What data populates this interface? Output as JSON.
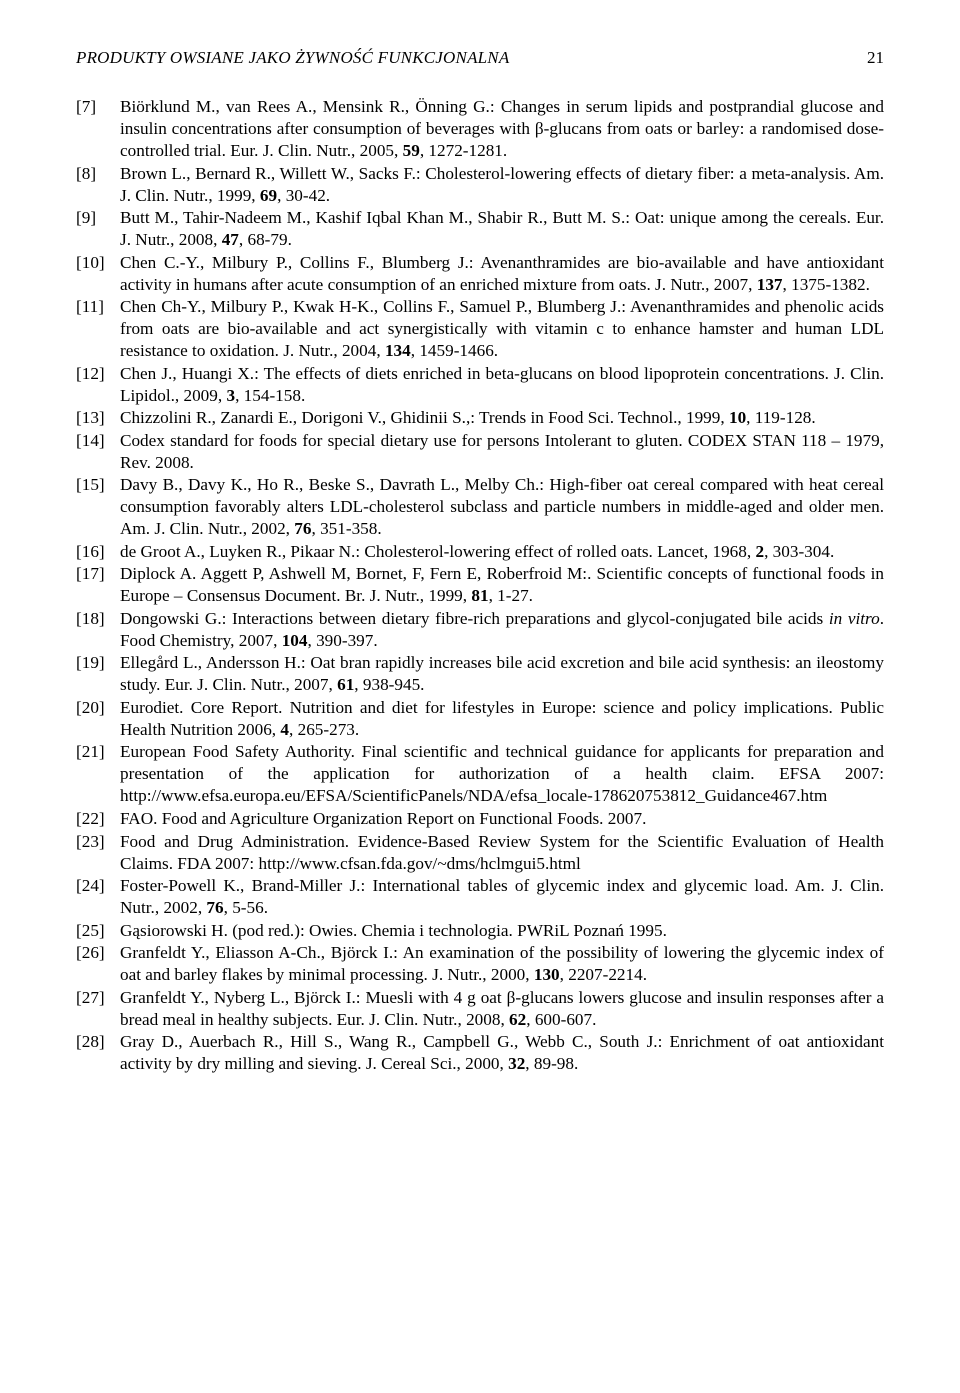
{
  "header": {
    "running_head": "PRODUKTY OWSIANE JAKO ŻYWNOŚĆ FUNKCJONALNA",
    "page_number": "21"
  },
  "references": [
    {
      "label": "[7]",
      "text": "Biörklund M., van Rees A., Mensink R., Önning G.: Changes in serum lipids and postprandial glucose and insulin concentrations after consumption of beverages with β-glucans from oats or barley: a randomised dose-controlled trial. Eur. J. Clin. Nutr., 2005, <b>59</b>, 1272-1281."
    },
    {
      "label": "[8]",
      "text": "Brown L., Bernard R., Willett W., Sacks F.: Cholesterol-lowering effects of dietary fiber: a meta-analysis. Am. J. Clin. Nutr., 1999, <b>69</b>, 30-42."
    },
    {
      "label": "[9]",
      "text": "Butt M., Tahir-Nadeem M., Kashif Iqbal Khan M., Shabir R., Butt M. S.: Oat: unique among the cereals. Eur. J. Nutr., 2008, <b>47</b>, 68-79."
    },
    {
      "label": "[10]",
      "text": "Chen C.-Y., Milbury P., Collins F., Blumberg J.: Avenanthramides are bio-available and have antioxidant activity in humans after acute consumption of an enriched mixture from oats. J. Nutr., 2007, <b>137</b>, 1375-1382."
    },
    {
      "label": "[11]",
      "text": "Chen Ch-Y., Milbury P., Kwak H-K., Collins F., Samuel P., Blumberg J.: Avenanthramides and phenolic acids from oats are bio-available and act synergistically with vitamin c to enhance hamster and human LDL resistance to oxidation. J. Nutr., 2004, <b>134</b>, 1459-1466."
    },
    {
      "label": "[12]",
      "text": "Chen J., Huangi X.: The effects of diets enriched in beta-glucans on blood lipoprotein concentrations. J. Clin. Lipidol., 2009, <b>3</b>, 154-158."
    },
    {
      "label": "[13]",
      "text": "Chizzolini R., Zanardi E., Dorigoni V., Ghidinii S.,: Trends in Food Sci. Technol., 1999, <b>10</b>, 119-128."
    },
    {
      "label": "[14]",
      "text": "Codex standard for foods for special dietary use for persons Intolerant to gluten. CODEX STAN 118 – 1979, Rev. 2008."
    },
    {
      "label": "[15]",
      "text": "Davy B., Davy K., Ho R., Beske S., Davrath L., Melby Ch.: High-fiber oat cereal compared with heat cereal consumption favorably alters LDL-cholesterol subclass and particle numbers in middle-aged and older men. Am. J. Clin. Nutr., 2002, <b>76</b>, 351-358."
    },
    {
      "label": "[16]",
      "text": "de Groot A., Luyken R., Pikaar N.: Cholesterol-lowering effect of rolled oats. Lancet, 1968, <b>2</b>, 303-304."
    },
    {
      "label": "[17]",
      "text": "Diplock A. Aggett P, Ashwell M, Bornet, F, Fern E, Roberfroid M:. Scientific concepts of functional foods in Europe – Consensus Document. Br. J. Nutr., 1999, <b>81</b>, 1-27."
    },
    {
      "label": "[18]",
      "text": "Dongowski G.: Interactions between dietary fibre-rich preparations and glycol-conjugated bile acids <i>in vitro</i>. Food Chemistry, 2007, <b>104</b>, 390-397."
    },
    {
      "label": "[19]",
      "text": "Ellegård L., Andersson H.: Oat bran rapidly increases bile acid excretion and bile acid synthesis: an ileostomy study. Eur. J. Clin. Nutr., 2007, <b>61</b>, 938-945."
    },
    {
      "label": "[20]",
      "text": "Eurodiet. Core Report. Nutrition and diet for lifestyles in Europe: science and policy implications. Public Health Nutrition 2006, <b>4</b>, 265-273."
    },
    {
      "label": "[21]",
      "text": "European Food Safety Authority. Final scientific and technical guidance for applicants for preparation and presentation of the application for authorization of a health claim. EFSA 2007: http://www.efsa.europa.eu/EFSA/ScientificPanels/NDA/efsa_locale-178620753812_Guidance467.htm"
    },
    {
      "label": "[22]",
      "text": "FAO. Food and Agriculture Organization Report on Functional Foods. 2007."
    },
    {
      "label": "[23]",
      "text": "Food and Drug Administration. Evidence-Based Review System for the Scientific Evaluation of Health Claims. FDA 2007: http://www.cfsan.fda.gov/~dms/hclmgui5.html"
    },
    {
      "label": "[24]",
      "text": "Foster-Powell K., Brand-Miller J.: International tables of glycemic index and glycemic load. Am. J. Clin. Nutr., 2002, <b>76</b>, 5-56."
    },
    {
      "label": "[25]",
      "text": "Gąsiorowski H. (pod red.): Owies. Chemia i technologia. PWRiL Poznań 1995."
    },
    {
      "label": "[26]",
      "text": "Granfeldt Y., Eliasson A-Ch., Björck I.: An examination of the possibility of lowering the glycemic index of oat and barley flakes by minimal processing. J. Nutr., 2000, <b>130</b>, 2207-2214."
    },
    {
      "label": "[27]",
      "text": "Granfeldt Y., Nyberg L., Björck I.: Muesli with 4 g oat β-glucans lowers glucose and insulin responses after a bread meal in healthy subjects. Eur. J. Clin. Nutr., 2008, <b>62</b>, 600-607."
    },
    {
      "label": "[28]",
      "text": "Gray D., Auerbach R., Hill S., Wang R., Campbell G., Webb C., South J.: Enrichment of oat antioxidant activity by dry milling and sieving. J. Cereal Sci., 2000, <b>32</b>, 89-98."
    }
  ]
}
